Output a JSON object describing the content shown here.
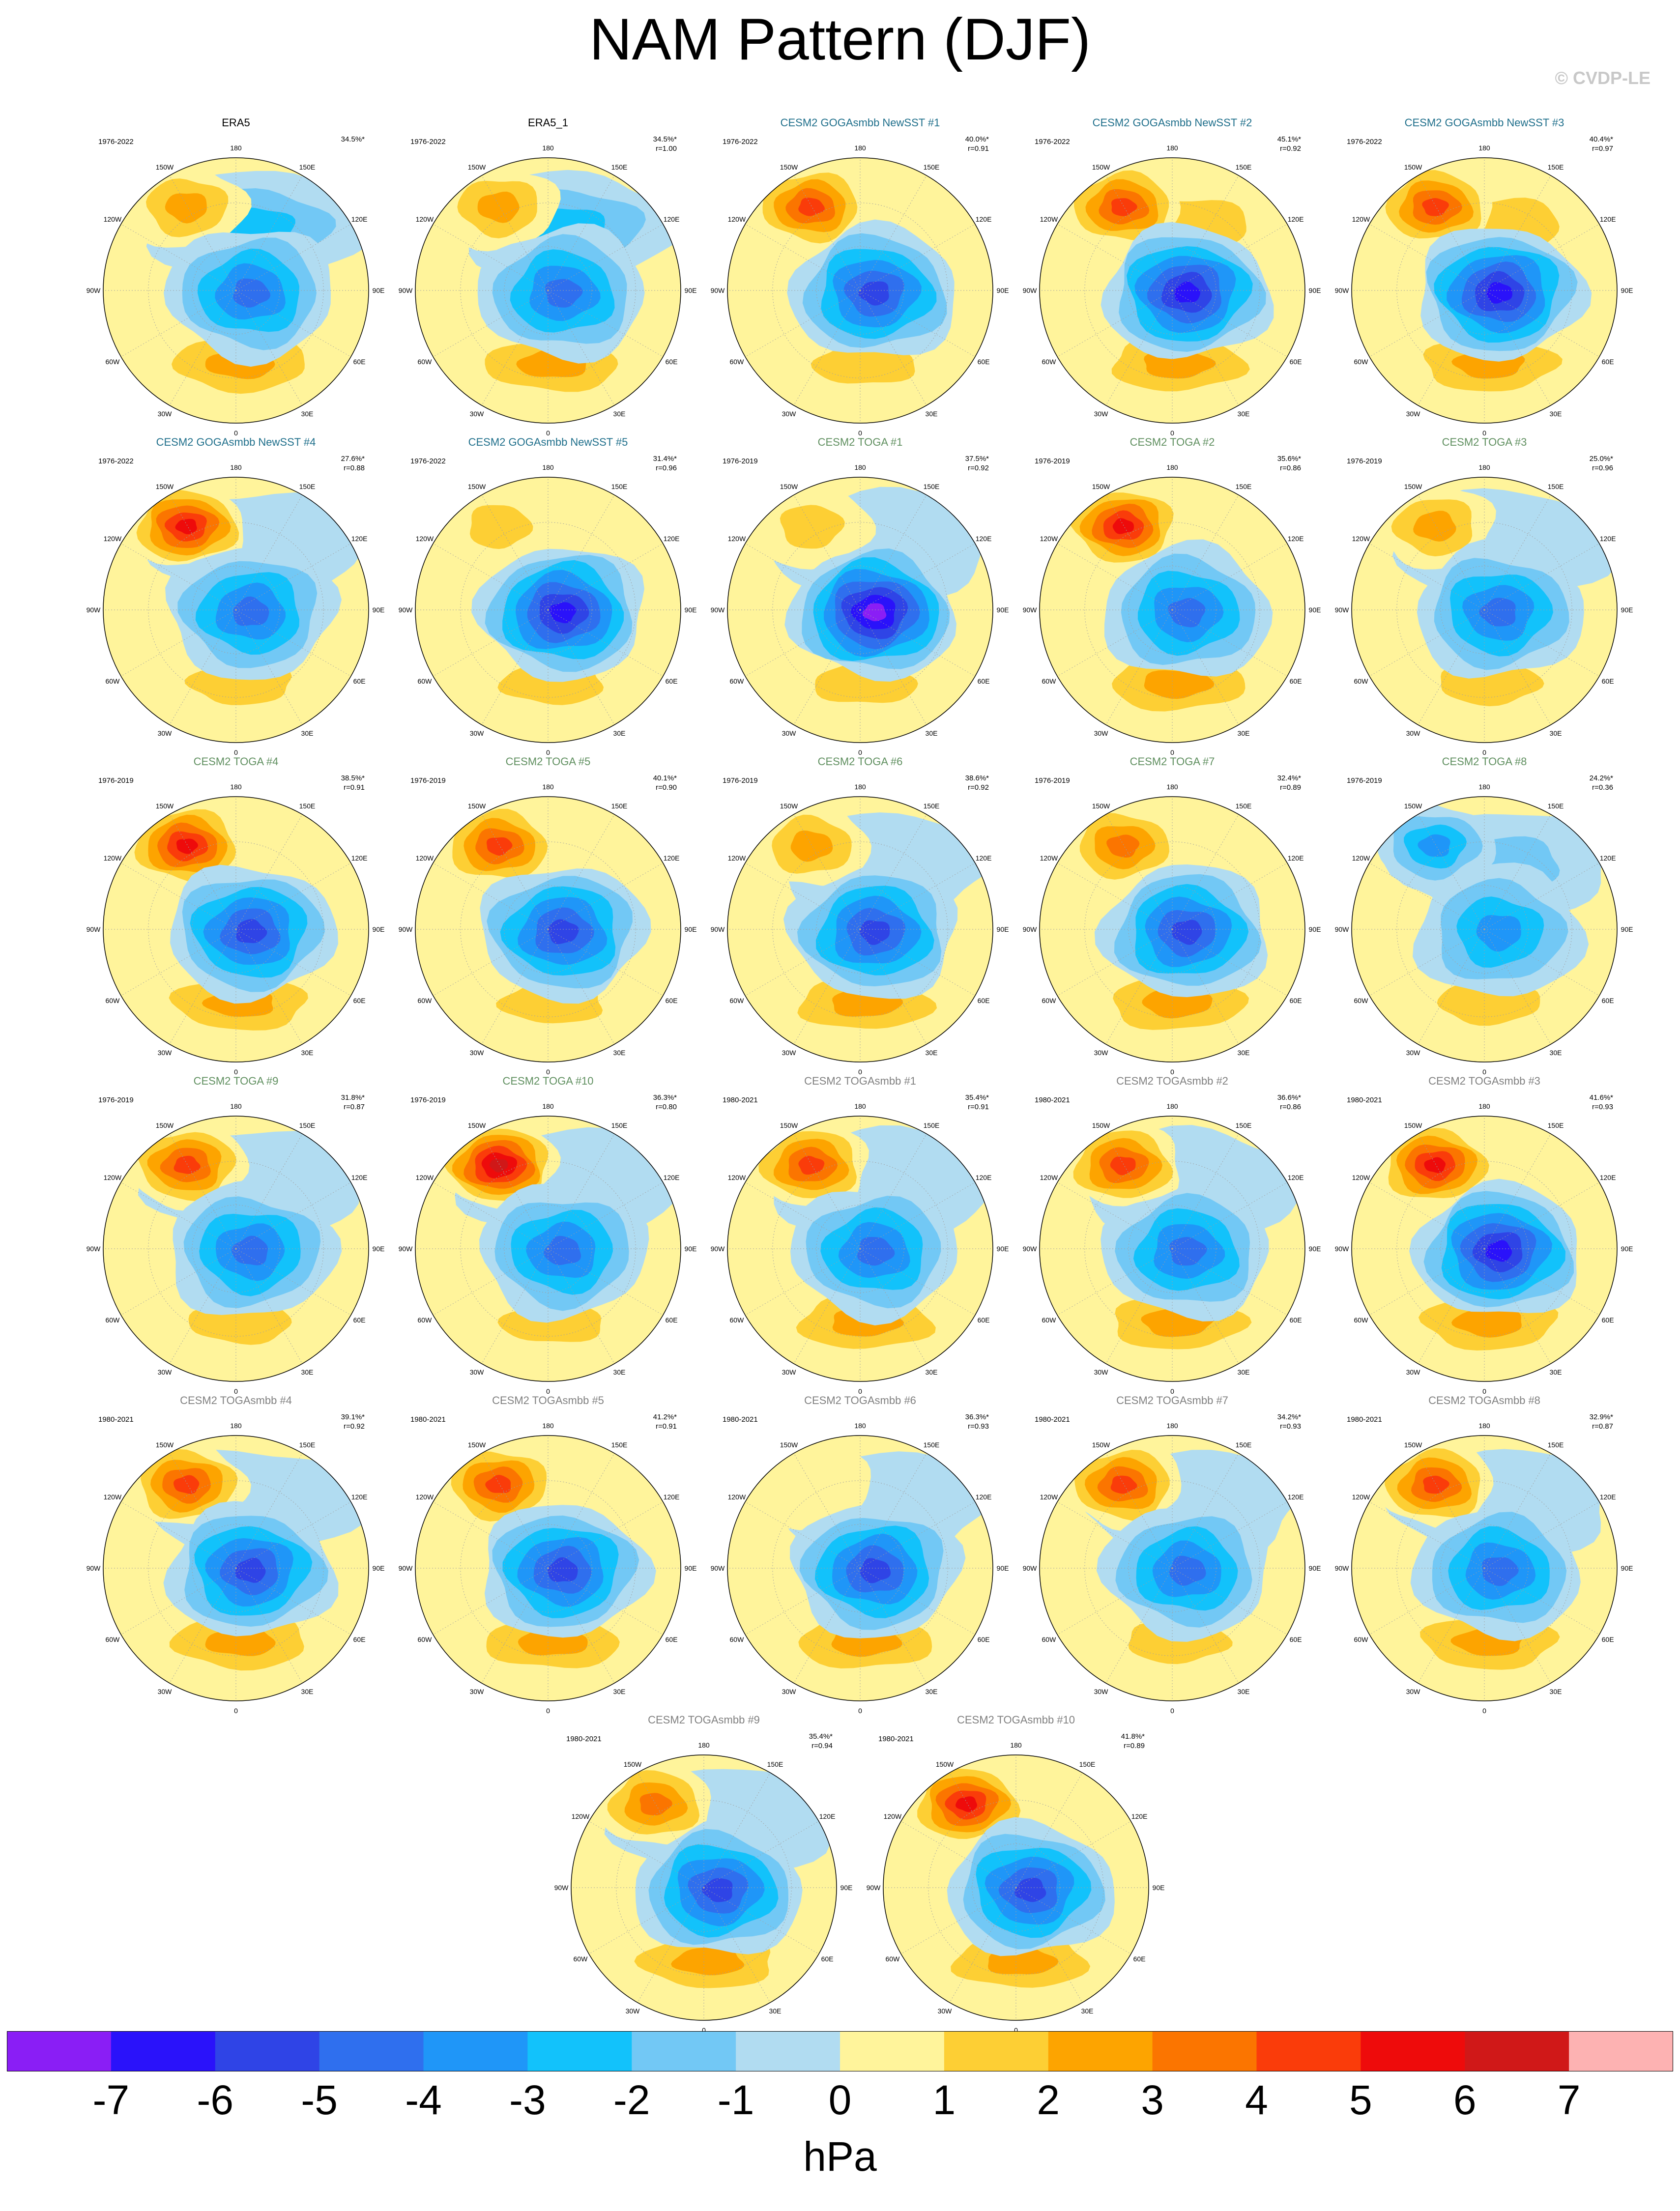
{
  "title": "NAM Pattern (DJF)",
  "copyright": "© CVDP-LE",
  "title_colors": {
    "obs": "#000000",
    "goga": "#1f6f8b",
    "toga": "#5f8f5f",
    "togasmbb": "#808080"
  },
  "lon_labels": [
    "180",
    "150E",
    "120E",
    "90E",
    "60E",
    "30E",
    "0",
    "30W",
    "60W",
    "90W",
    "120W",
    "150W"
  ],
  "panels": [
    {
      "title": "ERA5",
      "kind": "obs",
      "years": "1976-2022",
      "pct": "34.5%*",
      "r": "",
      "aleu": 2.5,
      "pac": -2.5,
      "atl": 2.5,
      "pole": -4.5
    },
    {
      "title": "ERA5_1",
      "kind": "obs",
      "years": "1976-2022",
      "pct": "34.5%*",
      "r": "r=1.00",
      "aleu": 2.5,
      "pac": -2.5,
      "atl": 2.5,
      "pole": -4.5
    },
    {
      "title": "CESM2 GOGAsmbb NewSST #1",
      "kind": "goga",
      "years": "1976-2022",
      "pct": "40.0%*",
      "r": "r=0.91",
      "aleu": 4.5,
      "pac": 0.5,
      "atl": 1.5,
      "pole": -5.5
    },
    {
      "title": "CESM2 GOGAsmbb NewSST #2",
      "kind": "goga",
      "years": "1976-2022",
      "pct": "45.1%*",
      "r": "r=0.92",
      "aleu": 4.5,
      "pac": 1.5,
      "atl": 2.5,
      "pole": -6.5
    },
    {
      "title": "CESM2 GOGAsmbb NewSST #3",
      "kind": "goga",
      "years": "1976-2022",
      "pct": "40.4%*",
      "r": "r=0.97",
      "aleu": 4.5,
      "pac": 1.5,
      "atl": 2.5,
      "pole": -6.5
    },
    {
      "title": "CESM2 GOGAsmbb NewSST #4",
      "kind": "goga",
      "years": "1976-2022",
      "pct": "27.6%*",
      "r": "r=0.88",
      "aleu": 5.5,
      "pac": -0.5,
      "atl": 1.5,
      "pole": -4.5
    },
    {
      "title": "CESM2 GOGAsmbb NewSST #5",
      "kind": "goga",
      "years": "1976-2022",
      "pct": "31.4%*",
      "r": "r=0.96",
      "aleu": 1.5,
      "pac": 0.5,
      "atl": 1.5,
      "pole": -6.5
    },
    {
      "title": "CESM2 TOGA #1",
      "kind": "toga",
      "years": "1976-2019",
      "pct": "37.5%*",
      "r": "r=0.92",
      "aleu": 1.5,
      "pac": -0.5,
      "atl": 1.5,
      "pole": -7.5
    },
    {
      "title": "CESM2 TOGA #2",
      "kind": "toga",
      "years": "1976-2019",
      "pct": "35.6%*",
      "r": "r=0.86",
      "aleu": 5.5,
      "pac": 0.5,
      "atl": 2.5,
      "pole": -4.5
    },
    {
      "title": "CESM2 TOGA #3",
      "kind": "toga",
      "years": "1976-2019",
      "pct": "25.0%*",
      "r": "r=0.96",
      "aleu": 2.5,
      "pac": -0.5,
      "atl": 1.5,
      "pole": -4.5
    },
    {
      "title": "CESM2 TOGA #4",
      "kind": "toga",
      "years": "1976-2019",
      "pct": "38.5%*",
      "r": "r=0.91",
      "aleu": 5.5,
      "pac": 0.5,
      "atl": 2.5,
      "pole": -5.5
    },
    {
      "title": "CESM2 TOGA #5",
      "kind": "toga",
      "years": "1976-2019",
      "pct": "40.1%*",
      "r": "r=0.90",
      "aleu": 4.5,
      "pac": 0.5,
      "atl": 1.5,
      "pole": -5.5
    },
    {
      "title": "CESM2 TOGA #6",
      "kind": "toga",
      "years": "1976-2019",
      "pct": "38.6%*",
      "r": "r=0.92",
      "aleu": 2.5,
      "pac": -0.5,
      "atl": 2.5,
      "pole": -5.5
    },
    {
      "title": "CESM2 TOGA #7",
      "kind": "toga",
      "years": "1976-2019",
      "pct": "32.4%*",
      "r": "r=0.89",
      "aleu": 3.5,
      "pac": 0.5,
      "atl": 2.5,
      "pole": -5.5
    },
    {
      "title": "CESM2 TOGA #8",
      "kind": "toga",
      "years": "1976-2019",
      "pct": "24.2%*",
      "r": "r=0.36",
      "aleu": -3.5,
      "pac": -1.5,
      "atl": 1.5,
      "pole": -3.5
    },
    {
      "title": "CESM2 TOGA #9",
      "kind": "toga",
      "years": "1976-2019",
      "pct": "31.8%*",
      "r": "r=0.87",
      "aleu": 4.5,
      "pac": -0.5,
      "atl": 1.5,
      "pole": -4.5
    },
    {
      "title": "CESM2 TOGA #10",
      "kind": "toga",
      "years": "1976-2019",
      "pct": "36.3%*",
      "r": "r=0.80",
      "aleu": 6.5,
      "pac": -0.5,
      "atl": 1.5,
      "pole": -4.5
    },
    {
      "title": "CESM2 TOGAsmbb #1",
      "kind": "togasmbb",
      "years": "1980-2021",
      "pct": "35.4%*",
      "r": "r=0.91",
      "aleu": 4.5,
      "pac": -0.5,
      "atl": 2.5,
      "pole": -4.5
    },
    {
      "title": "CESM2 TOGAsmbb #2",
      "kind": "togasmbb",
      "years": "1980-2021",
      "pct": "36.6%*",
      "r": "r=0.86",
      "aleu": 4.5,
      "pac": -0.5,
      "atl": 2.5,
      "pole": -4.5
    },
    {
      "title": "CESM2 TOGAsmbb #3",
      "kind": "togasmbb",
      "years": "1980-2021",
      "pct": "41.6%*",
      "r": "r=0.93",
      "aleu": 5.5,
      "pac": 0.5,
      "atl": 2.5,
      "pole": -6.5
    },
    {
      "title": "CESM2 TOGAsmbb #4",
      "kind": "togasmbb",
      "years": "1980-2021",
      "pct": "39.1%*",
      "r": "r=0.92",
      "aleu": 4.5,
      "pac": -0.5,
      "atl": 2.5,
      "pole": -5.5
    },
    {
      "title": "CESM2 TOGAsmbb #5",
      "kind": "togasmbb",
      "years": "1980-2021",
      "pct": "41.2%*",
      "r": "r=0.91",
      "aleu": 4.5,
      "pac": 0.5,
      "atl": 2.5,
      "pole": -5.5
    },
    {
      "title": "CESM2 TOGAsmbb #6",
      "kind": "togasmbb",
      "years": "1980-2021",
      "pct": "36.3%*",
      "r": "r=0.93",
      "aleu": 0.5,
      "pac": -0.5,
      "atl": 2.5,
      "pole": -5.5
    },
    {
      "title": "CESM2 TOGAsmbb #7",
      "kind": "togasmbb",
      "years": "1980-2021",
      "pct": "34.2%*",
      "r": "r=0.93",
      "aleu": 4.5,
      "pac": -0.5,
      "atl": 1.5,
      "pole": -4.5
    },
    {
      "title": "CESM2 TOGAsmbb #8",
      "kind": "togasmbb",
      "years": "1980-2021",
      "pct": "32.9%*",
      "r": "r=0.87",
      "aleu": 4.5,
      "pac": -0.5,
      "atl": 2.5,
      "pole": -4.5
    },
    {
      "title": "CESM2 TOGAsmbb #9",
      "kind": "togasmbb",
      "years": "1980-2021",
      "pct": "35.4%*",
      "r": "r=0.94",
      "aleu": 3.5,
      "pac": -0.5,
      "atl": 2.5,
      "pole": -5.5
    },
    {
      "title": "CESM2 TOGAsmbb #10",
      "kind": "togasmbb",
      "years": "1980-2021",
      "pct": "41.8%*",
      "r": "r=0.89",
      "aleu": 5.5,
      "pac": 0.5,
      "atl": 2.5,
      "pole": -5.5
    }
  ],
  "colorbar": {
    "labels": [
      "-7",
      "-6",
      "-5",
      "-4",
      "-3",
      "-2",
      "-1",
      "0",
      "1",
      "2",
      "3",
      "4",
      "5",
      "6",
      "7"
    ],
    "levels": [
      -7,
      -6,
      -5,
      -4,
      -3,
      -2,
      -1,
      0,
      1,
      2,
      3,
      4,
      5,
      6,
      7
    ],
    "colors": [
      "#8a1ef5",
      "#2a12fa",
      "#2f44e6",
      "#2f6fee",
      "#1f96f8",
      "#12c2fb",
      "#72c8f5",
      "#b1dcf1",
      "#fff49b",
      "#fdcf34",
      "#fda400",
      "#fb7500",
      "#fa3c0a",
      "#ee0b0b",
      "#d01818",
      "#fdb2b2"
    ],
    "units": "hPa"
  }
}
